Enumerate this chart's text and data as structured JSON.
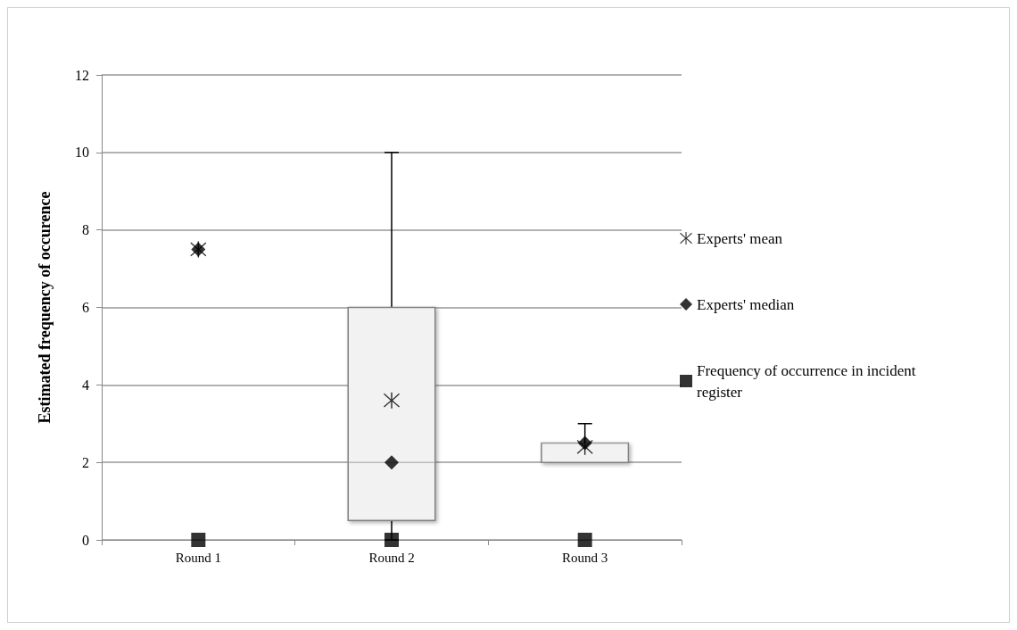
{
  "chart_data": {
    "type": "box",
    "categories": [
      "Round 1",
      "Round 2",
      "Round 3"
    ],
    "ylabel": "Estimated frequency of occurence",
    "ylim": [
      0,
      12
    ],
    "yticks": [
      0,
      2,
      4,
      6,
      8,
      10,
      12
    ],
    "grid": "y",
    "legend": "right",
    "color": "#f2f2f2",
    "boxes": [
      null,
      {
        "low": 0,
        "q1": 0.5,
        "median": 2,
        "q3": 6,
        "high": 10
      },
      {
        "low": 2,
        "q1": 2,
        "median": 2.5,
        "q3": 2.5,
        "high": 3
      }
    ],
    "series": [
      {
        "name": "Experts' mean",
        "type": "scatter",
        "marker": "cross",
        "color": "#000000",
        "x": [
          "Round 1",
          "Round 2",
          "Round 3"
        ],
        "values": [
          7.5,
          3.6,
          2.4
        ]
      },
      {
        "name": "Experts' median",
        "type": "scatter",
        "marker": "diamond",
        "color": "#000000",
        "x": [
          "Round 1",
          "Round 2",
          "Round 3"
        ],
        "values": [
          7.5,
          2,
          2.5
        ]
      },
      {
        "name": "Frequency of occurrence in incident register",
        "type": "scatter",
        "marker": "square",
        "color": "#000000",
        "x": [
          "Round 1",
          "Round 2",
          "Round 3"
        ],
        "values": [
          0,
          0,
          0
        ]
      }
    ]
  }
}
